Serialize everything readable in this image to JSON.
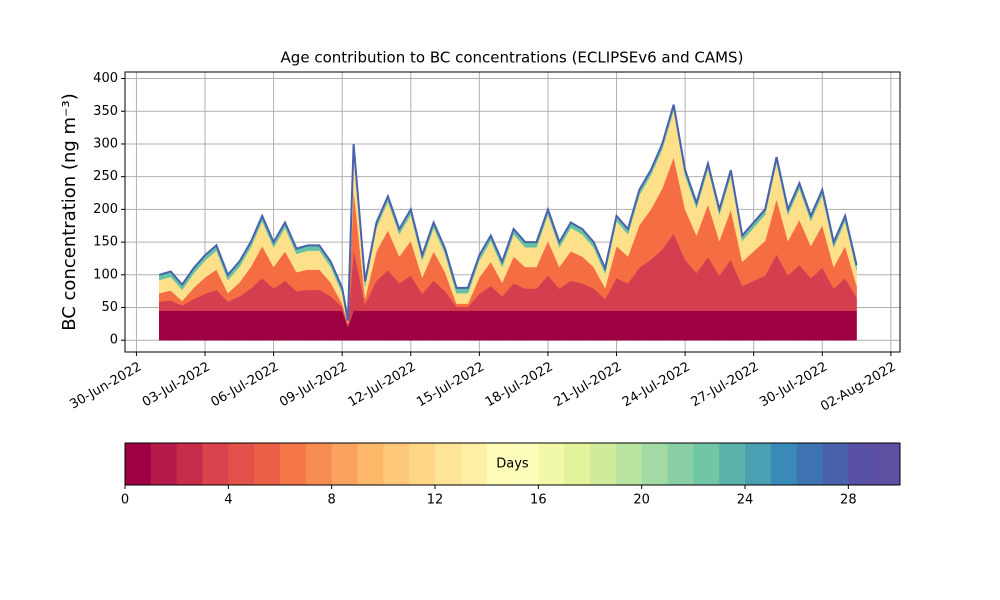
{
  "chart_data": {
    "type": "stacked_area",
    "title": "Age contribution to BC concentrations (ECLIPSEv6 and CAMS)",
    "y_label": "BC concentration (ng m⁻³)",
    "x": [
      1,
      1.5,
      2,
      2.5,
      3,
      3.5,
      4,
      4.5,
      5,
      5.5,
      6,
      6.5,
      7,
      7.5,
      8,
      8.5,
      9,
      9.25,
      9.5,
      10,
      10.5,
      11,
      11.5,
      12,
      12.5,
      13,
      13.5,
      14,
      14.5,
      15,
      15.5,
      16,
      16.5,
      17,
      17.5,
      18,
      18.5,
      19,
      19.5,
      20,
      20.5,
      21,
      21.5,
      22,
      22.5,
      23,
      23.5,
      24,
      24.5,
      25,
      25.5,
      26,
      26.5,
      27,
      27.5,
      28,
      28.5,
      29,
      29.5,
      30,
      30.5,
      31,
      31.5
    ],
    "series": [
      {
        "color": "#9e0142",
        "values": [
          45,
          45,
          45,
          45,
          45,
          45,
          45,
          45,
          45,
          45,
          45,
          45,
          45,
          45,
          45,
          45,
          45,
          20,
          45,
          45,
          45,
          45,
          45,
          45,
          45,
          45,
          45,
          45,
          45,
          45,
          45,
          45,
          45,
          45,
          45,
          45,
          45,
          45,
          45,
          45,
          45,
          45,
          45,
          45,
          45,
          45,
          45,
          45,
          45,
          45,
          45,
          45,
          45,
          45,
          45,
          45,
          45,
          45,
          45,
          45,
          45,
          45,
          45
        ]
      },
      {
        "color": "#d53e4f",
        "values": [
          14,
          16,
          8,
          18,
          26,
          32,
          14,
          22,
          34,
          50,
          34,
          46,
          30,
          32,
          32,
          22,
          6,
          3,
          94,
          10,
          46,
          62,
          42,
          54,
          26,
          46,
          30,
          6,
          6,
          26,
          38,
          22,
          42,
          34,
          34,
          54,
          34,
          46,
          42,
          34,
          18,
          50,
          42,
          66,
          78,
          94,
          118,
          78,
          58,
          82,
          54,
          78,
          38,
          46,
          54,
          86,
          54,
          70,
          50,
          66,
          34,
          50,
          20
        ]
      },
      {
        "color": "#f46d43",
        "values": [
          13,
          15,
          7,
          17,
          25,
          31,
          13,
          21,
          33,
          49,
          33,
          45,
          29,
          31,
          31,
          21,
          5,
          3,
          93,
          9,
          45,
          61,
          41,
          53,
          25,
          45,
          29,
          5,
          5,
          25,
          37,
          21,
          41,
          33,
          33,
          53,
          33,
          45,
          41,
          33,
          17,
          49,
          41,
          65,
          77,
          93,
          117,
          77,
          57,
          81,
          53,
          77,
          37,
          45,
          53,
          85,
          53,
          69,
          49,
          65,
          33,
          49,
          19
        ]
      },
      {
        "color": "#fee08b",
        "values": [
          20,
          21,
          17,
          22,
          26,
          29,
          20,
          24,
          30,
          38,
          30,
          36,
          28,
          29,
          29,
          24,
          16,
          2,
          60,
          18,
          36,
          44,
          34,
          40,
          26,
          36,
          28,
          16,
          16,
          26,
          32,
          24,
          34,
          30,
          30,
          40,
          30,
          36,
          34,
          30,
          22,
          38,
          34,
          46,
          52,
          60,
          72,
          52,
          42,
          54,
          40,
          52,
          32,
          36,
          40,
          56,
          40,
          48,
          38,
          46,
          30,
          38,
          23
        ]
      },
      {
        "color": "#66c2a5",
        "values": [
          8,
          8,
          8,
          8,
          8,
          8,
          8,
          8,
          8,
          8,
          8,
          8,
          8,
          8,
          8,
          8,
          8,
          2,
          8,
          8,
          8,
          8,
          8,
          8,
          8,
          8,
          8,
          8,
          8,
          8,
          8,
          8,
          8,
          8,
          8,
          8,
          8,
          8,
          8,
          8,
          8,
          8,
          8,
          8,
          8,
          8,
          8,
          8,
          8,
          8,
          8,
          8,
          8,
          8,
          8,
          8,
          8,
          8,
          8,
          8,
          8,
          8,
          8
        ]
      }
    ],
    "line_color": "#4a62ac",
    "xlim": [
      -0.5,
      33.4
    ],
    "xticks": [
      {
        "value": 0,
        "label": "30-Jun-2022"
      },
      {
        "value": 3,
        "label": "03-Jul-2022"
      },
      {
        "value": 6,
        "label": "06-Jul-2022"
      },
      {
        "value": 9,
        "label": "09-Jul-2022"
      },
      {
        "value": 12,
        "label": "12-Jul-2022"
      },
      {
        "value": 15,
        "label": "15-Jul-2022"
      },
      {
        "value": 18,
        "label": "18-Jul-2022"
      },
      {
        "value": 21,
        "label": "21-Jul-2022"
      },
      {
        "value": 24,
        "label": "24-Jul-2022"
      },
      {
        "value": 27,
        "label": "27-Jul-2022"
      },
      {
        "value": 30,
        "label": "30-Jul-2022"
      },
      {
        "value": 33,
        "label": "02-Aug-2022"
      }
    ],
    "ylim": [
      -18,
      410
    ],
    "yticks": [
      0,
      50,
      100,
      150,
      200,
      250,
      300,
      350,
      400
    ],
    "grid": true,
    "colorbar": {
      "label": "Days",
      "lim": [
        0,
        30
      ],
      "ticks": [
        0,
        4,
        8,
        12,
        16,
        20,
        24,
        28
      ],
      "colors": [
        "#9e0142",
        "#b31a4a",
        "#c72c4a",
        "#d8434e",
        "#e2524a",
        "#ec6145",
        "#f57748",
        "#f88d52",
        "#fba35e",
        "#fdb869",
        "#fdc877",
        "#fed686",
        "#fee496",
        "#fff0a6",
        "#fffbb8",
        "#fbfdba",
        "#f1f9a9",
        "#e3f399",
        "#d0eb9c",
        "#bae3a0",
        "#a2d9a4",
        "#88cfa4",
        "#71c6a5",
        "#5db3ab",
        "#4a9fb2",
        "#3a8ab9",
        "#3e74b3",
        "#4a62ac",
        "#5851a3",
        "#5e4fa2"
      ]
    }
  }
}
